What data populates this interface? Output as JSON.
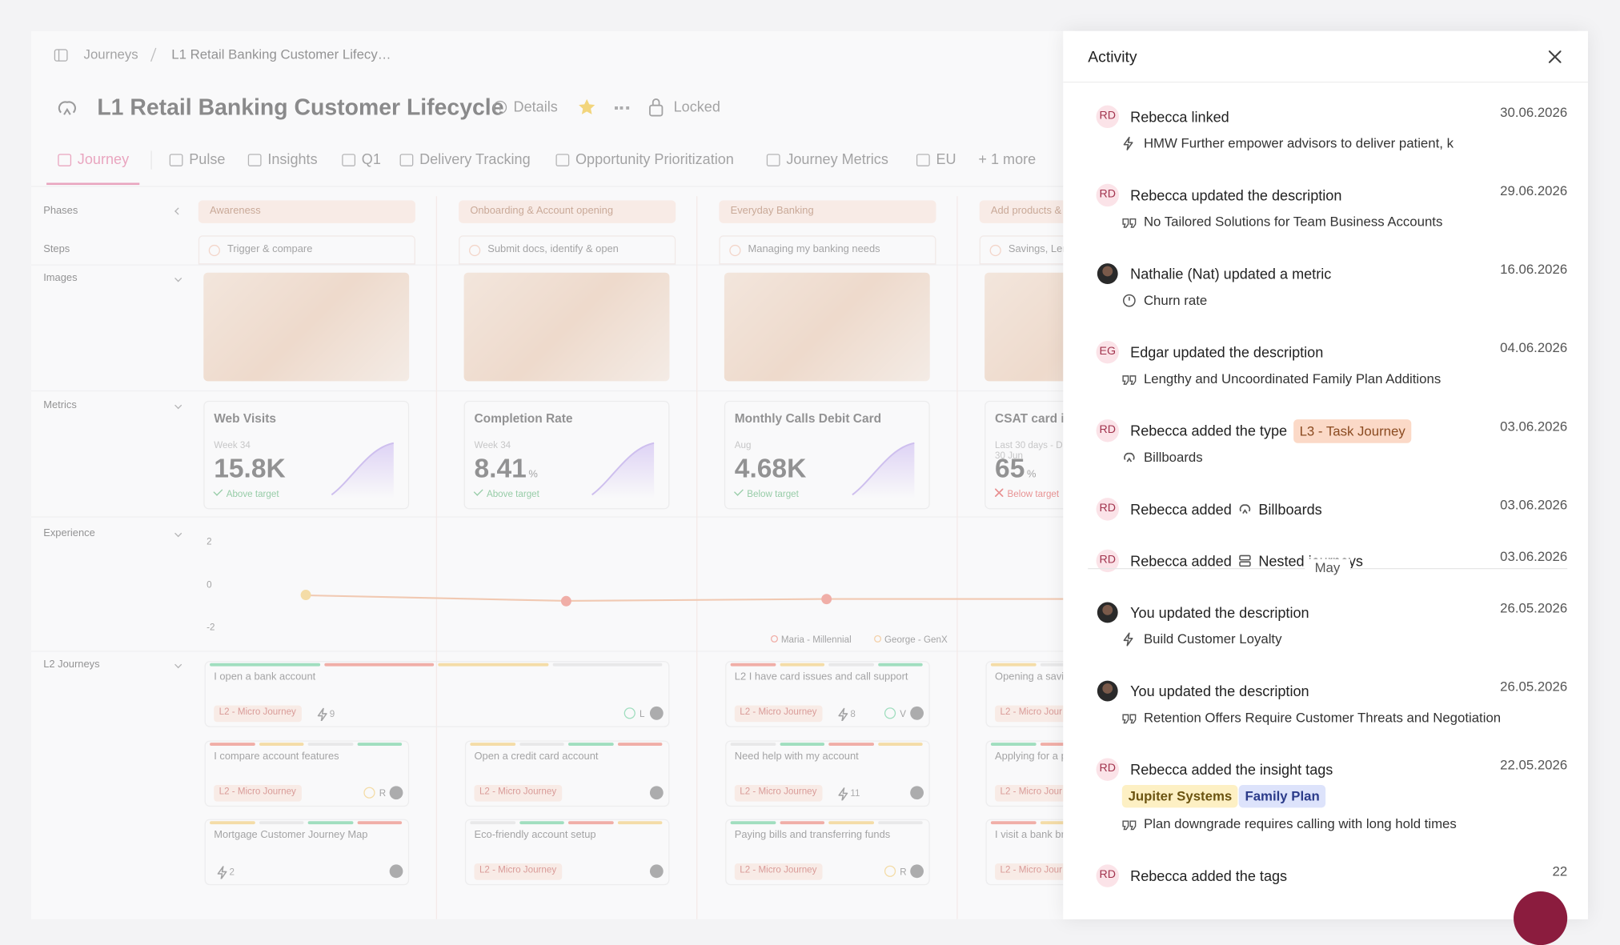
{
  "breadcrumb": [
    "Journeys",
    "L1 Retail Banking Customer Lifecy…"
  ],
  "header": {
    "title": "L1 Retail Banking Customer Lifecycle",
    "details": "Details",
    "locked": "Locked"
  },
  "tabs": [
    "Journey",
    "Pulse",
    "Insights",
    "Q1",
    "Delivery Tracking",
    "Opportunity Prioritization",
    "Journey Metrics",
    "EU",
    "+ 1 more"
  ],
  "board": {
    "rows": [
      "Phases",
      "Steps",
      "Images",
      "Metrics",
      "Experience",
      "L2 Journeys"
    ],
    "columns": [
      {
        "phase": "Awareness",
        "step": "Trigger & compare",
        "metric": {
          "name": "Web Visits",
          "period": "Week 34",
          "value": "15.8K",
          "status": "Above target",
          "ok": true
        }
      },
      {
        "phase": "Onboarding & Account opening",
        "step": "Submit docs, identify & open",
        "metric": {
          "name": "Completion Rate",
          "period": "Week 34",
          "value": "8.41",
          "unit": "%",
          "status": "Above target",
          "ok": true
        }
      },
      {
        "phase": "Everyday Banking",
        "step": "Managing my banking needs",
        "metric": {
          "name": "Monthly Calls Debit Card",
          "period": "Aug",
          "value": "4.68K",
          "status": "Below target",
          "ok": true
        }
      },
      {
        "phase": "Add products &",
        "step": "Savings, Len",
        "metric": {
          "name": "CSAT card is",
          "period": "Last 30 days - D",
          "period2": "30 Jun",
          "value": "65",
          "unit": "%",
          "status": "Below target",
          "ok": false
        }
      }
    ],
    "experience": {
      "yticks": [
        2,
        0,
        -2
      ],
      "points": [
        -0.5,
        -0.76,
        -0.67
      ],
      "legend": [
        "Maria - Millennial",
        "George - GenX"
      ]
    },
    "l2_rows": [
      [
        {
          "title": "I open a bank account",
          "tag": "L2 - Micro Journey",
          "count": "9",
          "assignee": "L",
          "done": true
        },
        {
          "title": "L2 I have card issues and call support",
          "tag": "L2 - Micro Journey",
          "count": "8",
          "assignee": "V",
          "done": true
        },
        {
          "title": "Opening a savi",
          "tag": "L2 - Micro Jour"
        }
      ],
      [
        {
          "title": "I compare account features",
          "tag": "L2 - Micro Journey",
          "assignee": "R"
        },
        {
          "title": "Open a credit card account",
          "tag": "L2 - Micro Journey"
        },
        {
          "title": "Need help with my account",
          "tag": "L2 - Micro Journey",
          "count": "11"
        },
        {
          "title": "Applying for a p",
          "tag": "L2 - Micro Jour"
        }
      ],
      [
        {
          "title": "Mortgage Customer Journey Map",
          "count": "2"
        },
        {
          "title": "Eco-friendly account setup",
          "tag": "L2 - Micro Journey"
        },
        {
          "title": "Paying bills and transferring funds",
          "tag": "L2 - Micro Journey",
          "assignee": "R"
        },
        {
          "title": "I visit a bank br",
          "tag": "L2 - Micro Jour"
        }
      ]
    ]
  },
  "activity": {
    "title": "Activity",
    "groups": [
      {
        "items": [
          {
            "avatar": "RD",
            "actor": "Rebecca linked",
            "date": "30.06.2026",
            "icon": "bolt",
            "detail": "HMW Further empower advisors to deliver patient, k"
          },
          {
            "avatar": "RD",
            "actor": "Rebecca updated the description",
            "date": "29.06.2026",
            "icon": "quote",
            "detail": "No Tailored Solutions for Team Business Accounts"
          },
          {
            "actor": "Nathalie (Nat) updated a metric",
            "date": "16.06.2026",
            "icon": "metric",
            "detail": "Churn rate"
          },
          {
            "avatar": "EG",
            "actor": "Edgar updated the description",
            "date": "04.06.2026",
            "icon": "quote",
            "detail": "Lengthy and Uncoordinated Family Plan Additions"
          },
          {
            "avatar": "RD",
            "actor": "Rebecca added the type",
            "badge": "L3 - Task Journey",
            "date": "03.06.2026",
            "icon": "billboard",
            "detail": "Billboards"
          },
          {
            "avatar": "RD",
            "actor": "Rebecca added",
            "object": "Billboards",
            "object_icon": "billboard",
            "date": "03.06.2026"
          },
          {
            "avatar": "RD",
            "actor": "Rebecca added",
            "object": "Nested journeys",
            "object_icon": "nested",
            "date": "03.06.2026"
          }
        ]
      },
      {
        "label": "May",
        "items": [
          {
            "actor": "You updated the description",
            "date": "26.05.2026",
            "icon": "bolt",
            "detail": "Build Customer Loyalty"
          },
          {
            "actor": "You updated the description",
            "date": "26.05.2026",
            "icon": "quote",
            "detail": "Retention Offers Require Customer Threats and Negotiation"
          },
          {
            "avatar": "RD",
            "actor": "Rebecca added the insight tags",
            "date": "22.05.2026",
            "tags": [
              "Jupiter Systems",
              "Family Plan"
            ],
            "icon": "quote",
            "detail": "Plan downgrade requires calling with long hold times"
          },
          {
            "avatar": "RD",
            "actor": "Rebecca added the tags",
            "date": "22"
          }
        ]
      }
    ]
  }
}
